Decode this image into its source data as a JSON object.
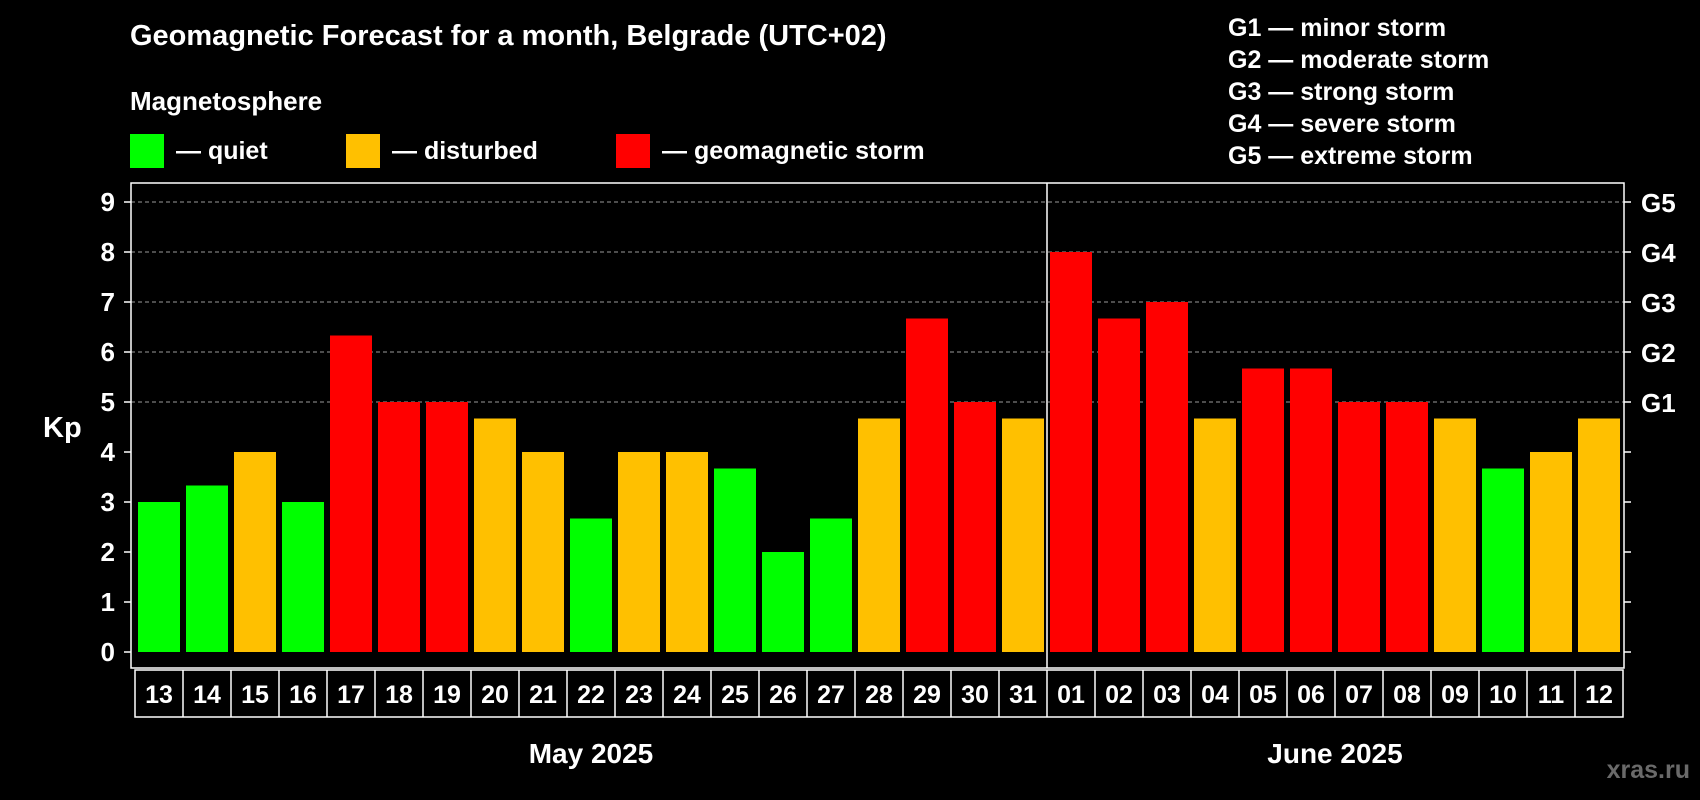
{
  "title": "Geomagnetic Forecast for a month, Belgrade (UTC+02)",
  "magnetosphere_label": "Magnetosphere",
  "legend": [
    {
      "label": "— quiet",
      "color": "#00ff00"
    },
    {
      "label": "— disturbed",
      "color": "#ffc000"
    },
    {
      "label": "— geomagnetic storm",
      "color": "#ff0000"
    }
  ],
  "storm_levels": [
    "G1 — minor storm",
    "G2 — moderate storm",
    "G3 — strong storm",
    "G4 — severe storm",
    "G5 — extreme storm"
  ],
  "watermark": "xras.ru",
  "chart_data": {
    "type": "bar",
    "ylabel": "Kp",
    "ylim": [
      0,
      9
    ],
    "yticks": [
      "0",
      "1",
      "2",
      "3",
      "4",
      "5",
      "6",
      "7",
      "8",
      "9"
    ],
    "right_axis_labels": [
      {
        "kp": 5,
        "label": "G1"
      },
      {
        "kp": 6,
        "label": "G2"
      },
      {
        "kp": 7,
        "label": "G3"
      },
      {
        "kp": 8,
        "label": "G4"
      },
      {
        "kp": 9,
        "label": "G5"
      }
    ],
    "grid": "dashed horizontal",
    "month_groups": [
      {
        "label": "May 2025",
        "count": 19
      },
      {
        "label": "June 2025",
        "count": 12
      }
    ],
    "categories": [
      "13",
      "14",
      "15",
      "16",
      "17",
      "18",
      "19",
      "20",
      "21",
      "22",
      "23",
      "24",
      "25",
      "26",
      "27",
      "28",
      "29",
      "30",
      "31",
      "01",
      "02",
      "03",
      "04",
      "05",
      "06",
      "07",
      "08",
      "09",
      "10",
      "11",
      "12"
    ],
    "values": [
      3.0,
      3.33,
      4.0,
      3.0,
      6.33,
      5.0,
      5.0,
      4.67,
      4.0,
      2.67,
      4.0,
      4.0,
      3.67,
      2.0,
      2.67,
      4.67,
      6.67,
      5.0,
      4.67,
      8.0,
      6.67,
      7.0,
      4.67,
      5.67,
      5.67,
      5.0,
      5.0,
      4.67,
      3.67,
      4.0,
      4.67
    ],
    "color_rule": {
      "quiet": "#00ff00 (Kp < 4)",
      "disturbed": "#ffc000 (4 ≤ Kp < 5)",
      "storm": "#ff0000 (Kp ≥ 5)"
    }
  }
}
